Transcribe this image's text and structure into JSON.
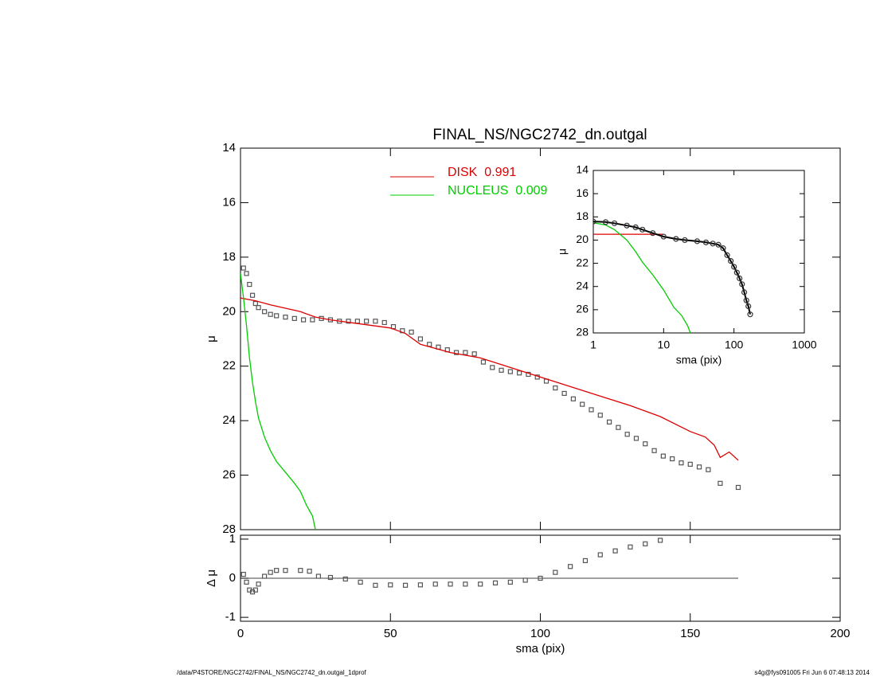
{
  "chart_data": [
    {
      "type": "line",
      "title": "FINAL_NS/NGC2742_dn.outgal",
      "y_label": "μ",
      "xlim": [
        0,
        200
      ],
      "ylim": [
        28,
        14
      ],
      "yticks": [
        14,
        16,
        18,
        20,
        22,
        24,
        26,
        28
      ],
      "legend": "top-center",
      "series": [
        {
          "color": "#555555",
          "style": "square",
          "x": [
            1,
            2,
            3,
            4,
            5,
            6,
            8,
            10,
            12,
            15,
            18,
            21,
            24,
            27,
            30,
            33,
            36,
            39,
            42,
            45,
            48,
            51,
            54,
            57,
            60,
            63,
            66,
            69,
            72,
            75,
            78,
            81,
            84,
            87,
            90,
            93,
            96,
            99,
            102,
            105,
            108,
            111,
            114,
            117,
            120,
            123,
            126,
            129,
            132,
            135,
            138,
            141,
            144,
            147,
            150,
            153,
            156,
            160,
            166
          ],
          "values": [
            18.4,
            18.6,
            19.0,
            19.4,
            19.7,
            19.85,
            20.0,
            20.1,
            20.15,
            20.2,
            20.25,
            20.3,
            20.3,
            20.25,
            20.3,
            20.35,
            20.35,
            20.35,
            20.35,
            20.35,
            20.4,
            20.55,
            20.7,
            20.75,
            21.0,
            21.2,
            21.3,
            21.4,
            21.5,
            21.5,
            21.55,
            21.85,
            22.05,
            22.15,
            22.2,
            22.25,
            22.3,
            22.4,
            22.55,
            22.8,
            23.0,
            23.2,
            23.4,
            23.6,
            23.8,
            24.05,
            24.25,
            24.5,
            24.65,
            24.85,
            25.1,
            25.3,
            25.4,
            25.55,
            25.6,
            25.7,
            25.8,
            26.3,
            26.45
          ]
        },
        {
          "name": "DISK  0.991",
          "color": "#dd0000",
          "style": "line",
          "x": [
            0,
            5,
            10,
            20,
            25,
            30,
            40,
            50,
            55,
            60,
            70,
            80,
            90,
            100,
            110,
            120,
            130,
            140,
            150,
            155,
            158,
            160,
            163,
            166
          ],
          "values": [
            19.5,
            19.6,
            19.75,
            20.0,
            20.2,
            20.3,
            20.45,
            20.6,
            20.8,
            21.2,
            21.5,
            21.7,
            22.05,
            22.4,
            22.75,
            23.1,
            23.45,
            23.85,
            24.4,
            24.6,
            24.9,
            25.35,
            25.15,
            25.45
          ]
        },
        {
          "name": "NUCLEUS  0.009",
          "color": "#00cc00",
          "style": "line",
          "x": [
            0,
            1,
            2,
            3,
            4,
            5,
            6,
            8,
            10,
            12,
            15,
            18,
            20,
            22,
            24,
            25
          ],
          "values": [
            18.6,
            19.5,
            20.5,
            21.7,
            22.6,
            23.3,
            23.9,
            24.6,
            25.1,
            25.5,
            25.9,
            26.3,
            26.6,
            27.1,
            27.5,
            28
          ]
        }
      ]
    },
    {
      "type": "line",
      "x_label": "sma (pix)",
      "y_label": "Δ μ",
      "xlim": [
        0,
        200
      ],
      "ylim": [
        -1.1,
        1.1
      ],
      "xticks": [
        0,
        50,
        100,
        150,
        200
      ],
      "yticks": [
        -1,
        0,
        1
      ],
      "series": [
        {
          "color": "#000000",
          "style": "line",
          "x": [
            0,
            166
          ],
          "values": [
            0,
            0
          ]
        },
        {
          "color": "#555555",
          "style": "square",
          "x": [
            1,
            2,
            3,
            4,
            5,
            6,
            8,
            10,
            12,
            15,
            20,
            23,
            26,
            30,
            35,
            40,
            45,
            50,
            55,
            60,
            65,
            70,
            75,
            80,
            85,
            90,
            95,
            100,
            105,
            110,
            115,
            120,
            125,
            130,
            135,
            140
          ],
          "values": [
            0.1,
            -0.1,
            -0.3,
            -0.35,
            -0.3,
            -0.15,
            0.05,
            0.15,
            0.2,
            0.2,
            0.2,
            0.18,
            0.05,
            0.02,
            -0.02,
            -0.1,
            -0.18,
            -0.17,
            -0.18,
            -0.17,
            -0.15,
            -0.15,
            -0.15,
            -0.15,
            -0.12,
            -0.1,
            -0.05,
            0.0,
            0.15,
            0.3,
            0.45,
            0.6,
            0.7,
            0.8,
            0.88,
            0.97
          ]
        }
      ]
    },
    {
      "type": "line",
      "x_label": "sma (pix)",
      "y_label": "μ",
      "xlog": true,
      "xlim": [
        1,
        1000
      ],
      "ylim": [
        28,
        14
      ],
      "xticks": [
        1,
        10,
        100,
        1000
      ],
      "yticks": [
        14,
        16,
        18,
        20,
        22,
        24,
        26,
        28
      ],
      "series": [
        {
          "color": "#dd0000",
          "style": "line",
          "x": [
            1,
            10
          ],
          "values": [
            19.5,
            19.5
          ]
        },
        {
          "color": "#00cc00",
          "style": "line",
          "x": [
            1,
            1.5,
            2,
            3,
            4,
            5,
            7,
            10,
            14,
            18,
            22,
            24
          ],
          "values": [
            18.5,
            18.7,
            19.1,
            20.0,
            21.0,
            21.9,
            23.0,
            24.3,
            25.8,
            26.5,
            27.4,
            28
          ]
        },
        {
          "color": "#333333",
          "style": "circle",
          "x": [
            1,
            1.5,
            2,
            3,
            4,
            5,
            7,
            10,
            15,
            20,
            30,
            40,
            50,
            60,
            70,
            80,
            90,
            100,
            110,
            120,
            130,
            140,
            150,
            160,
            170
          ],
          "values": [
            18.4,
            18.45,
            18.55,
            18.75,
            18.9,
            19.1,
            19.4,
            19.7,
            19.9,
            20.0,
            20.1,
            20.2,
            20.3,
            20.4,
            20.7,
            21.3,
            21.8,
            22.3,
            22.8,
            23.3,
            23.8,
            24.5,
            25.2,
            25.7,
            26.4
          ]
        }
      ]
    }
  ],
  "footer": {
    "left": "/data/P4STORE/NGC2742/FINAL_NS/NGC2742_dn.outgal_1dprof",
    "right": "s4g@fys091005  Fri Jun  6 07:48:13 2014"
  }
}
